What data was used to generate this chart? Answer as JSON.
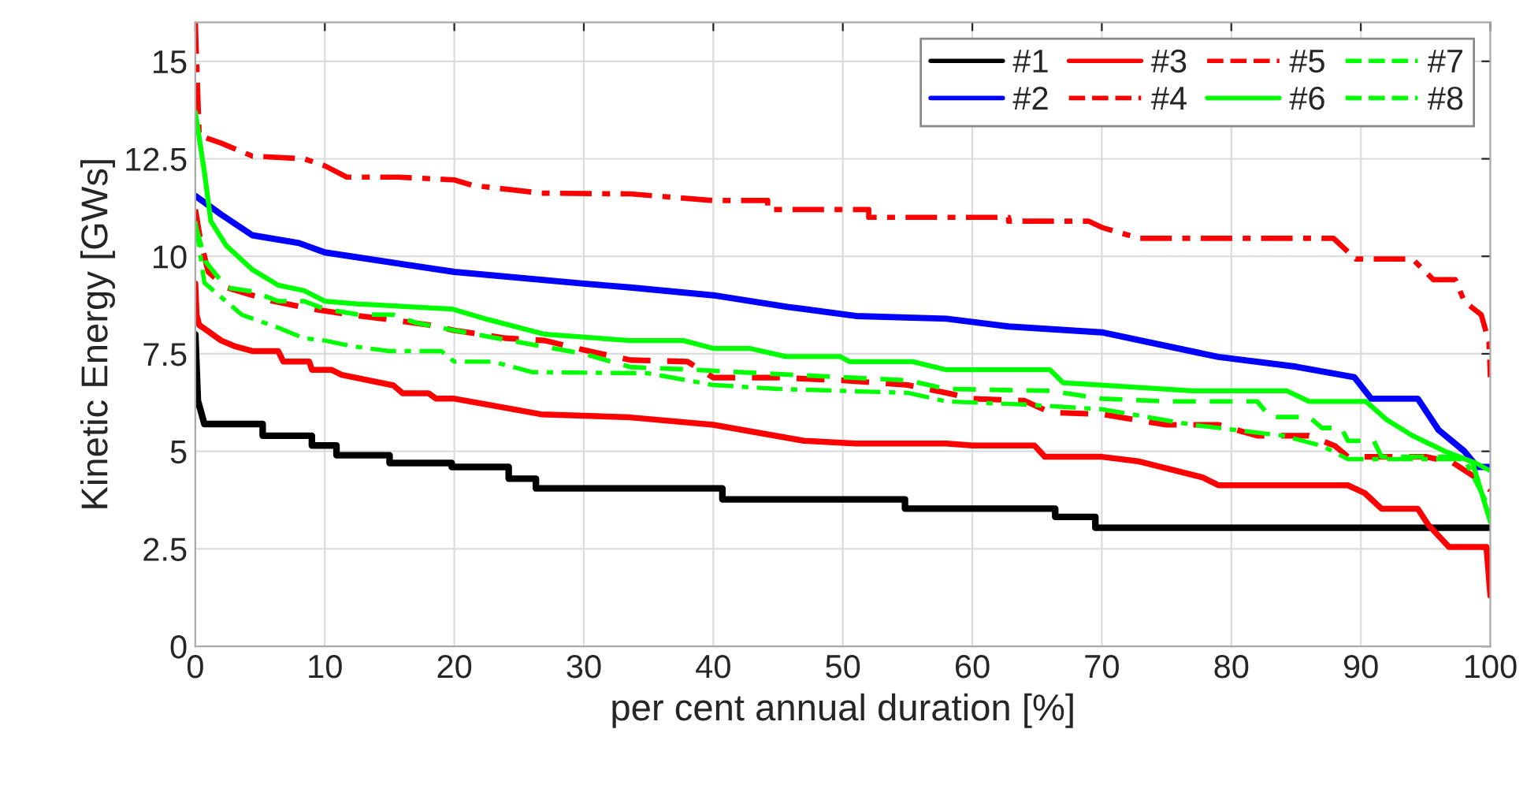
{
  "chart_data": {
    "type": "line",
    "xlabel": "per cent annual duration [%]",
    "ylabel": "Kinetic Energy [GWs]",
    "xlim": [
      0,
      100
    ],
    "xticks": [
      0,
      10,
      20,
      30,
      40,
      50,
      60,
      70,
      80,
      90,
      100
    ],
    "ylim": [
      0,
      16
    ],
    "yticks": [
      0,
      2.5,
      5,
      7.5,
      10,
      12.5,
      15
    ],
    "grid": true,
    "legend": "top right",
    "series": [
      {
        "name": "#1",
        "color": "#000000",
        "line_style": "solid",
        "x": [
          0,
          0.2,
          0.7,
          5.2,
          5.2,
          9,
          9,
          10.9,
          10.9,
          15,
          15,
          19.8,
          19.8,
          24.2,
          24.2,
          26.3,
          26.3,
          40.7,
          40.7,
          54.8,
          54.8,
          66.4,
          66.4,
          69.5,
          69.5,
          100
        ],
        "values": [
          8.0,
          6.3,
          5.7,
          5.7,
          5.4,
          5.4,
          5.15,
          5.15,
          4.9,
          4.9,
          4.7,
          4.7,
          4.6,
          4.6,
          4.3,
          4.3,
          4.05,
          4.05,
          3.77,
          3.77,
          3.53,
          3.53,
          3.32,
          3.32,
          3.04,
          3.04
        ]
      },
      {
        "name": "#2",
        "color": "#0000ff",
        "line_style": "solid",
        "x": [
          0,
          2,
          4.4,
          8,
          10,
          20,
          30,
          33.6,
          40,
          45.8,
          51,
          58,
          62.8,
          70,
          79,
          85,
          89.5,
          90.8,
          94.4,
          96,
          98,
          99,
          100
        ],
        "values": [
          11.55,
          11.07,
          10.54,
          10.34,
          10.1,
          9.6,
          9.3,
          9.2,
          9.0,
          8.7,
          8.47,
          8.4,
          8.2,
          8.05,
          7.42,
          7.17,
          6.9,
          6.35,
          6.35,
          5.55,
          5.0,
          4.6,
          4.6
        ]
      },
      {
        "name": "#3",
        "color": "#ff0000",
        "line_style": "solid",
        "x": [
          0,
          0.1,
          0.3,
          2,
          3,
          4.4,
          6.4,
          6.8,
          8.8,
          9,
          10.5,
          11.3,
          15.3,
          16,
          18,
          18.6,
          20,
          26.7,
          33.6,
          40,
          47,
          51,
          58,
          60,
          64.8,
          65.6,
          70,
          72.9,
          77.8,
          79,
          89,
          90.3,
          91.6,
          94.4,
          95.2,
          96.8,
          99.7,
          100
        ],
        "values": [
          9.3,
          8.5,
          8.24,
          7.84,
          7.7,
          7.57,
          7.57,
          7.3,
          7.3,
          7.09,
          7.09,
          6.96,
          6.69,
          6.49,
          6.49,
          6.35,
          6.35,
          5.95,
          5.87,
          5.68,
          5.27,
          5.2,
          5.2,
          5.15,
          5.15,
          4.86,
          4.86,
          4.74,
          4.33,
          4.13,
          4.13,
          3.93,
          3.53,
          3.53,
          3.12,
          2.55,
          2.55,
          1.3
        ]
      },
      {
        "name": "#4",
        "color": "#ff0000",
        "line_style": "dashed",
        "x": [
          0,
          0.4,
          1,
          2.4,
          4.4,
          6,
          9,
          12,
          15,
          18,
          20,
          24,
          27,
          30,
          33.6,
          38,
          40,
          45,
          50,
          55,
          58,
          60,
          64,
          66,
          70,
          75,
          79,
          82,
          86,
          88,
          89,
          95,
          97,
          99.5,
          100
        ],
        "values": [
          11.2,
          10.4,
          9.6,
          9.2,
          9.0,
          8.85,
          8.65,
          8.5,
          8.38,
          8.24,
          8.1,
          7.9,
          7.84,
          7.6,
          7.34,
          7.3,
          6.89,
          6.89,
          6.82,
          6.7,
          6.5,
          6.35,
          6.3,
          6.0,
          5.95,
          5.68,
          5.68,
          5.4,
          5.4,
          5.14,
          4.86,
          4.86,
          4.73,
          4.19,
          4.0
        ]
      },
      {
        "name": "#5",
        "color": "#ff0000",
        "line_style": "dashdot",
        "x": [
          0,
          0.3,
          2,
          4.4,
          8.4,
          10,
          11.7,
          15.7,
          20,
          21.4,
          26.7,
          33.6,
          40,
          44.2,
          44.2,
          52,
          52,
          62.8,
          62.8,
          69,
          70,
          72.9,
          87.9,
          89.6,
          94,
          95.6,
          97.3,
          98,
          99.3,
          99.9,
          100
        ],
        "values": [
          16,
          13.1,
          12.9,
          12.57,
          12.5,
          12.32,
          12.03,
          12.03,
          11.96,
          11.82,
          11.62,
          11.6,
          11.43,
          11.43,
          11.2,
          11.2,
          11.0,
          11.0,
          10.9,
          10.9,
          10.74,
          10.46,
          10.46,
          9.93,
          9.93,
          9.4,
          9.4,
          8.84,
          8.5,
          7.8,
          6.9
        ]
      },
      {
        "name": "#6",
        "color": "#00ff00",
        "line_style": "solid",
        "x": [
          0,
          0.7,
          1.2,
          2.4,
          4.4,
          6.4,
          8.4,
          10,
          12.5,
          19.8,
          22.6,
          27,
          33.6,
          37.7,
          40,
          42.8,
          45.6,
          49.8,
          50.5,
          55.4,
          58,
          66,
          67,
          77,
          84.3,
          86,
          90.4,
          92,
          94,
          96.5,
          98.6,
          100
        ],
        "values": [
          13.7,
          12.16,
          10.9,
          10.27,
          9.66,
          9.26,
          9.12,
          8.85,
          8.78,
          8.65,
          8.38,
          8.0,
          7.84,
          7.84,
          7.64,
          7.64,
          7.43,
          7.43,
          7.3,
          7.3,
          7.09,
          7.09,
          6.76,
          6.55,
          6.55,
          6.28,
          6.28,
          5.81,
          5.4,
          5.0,
          4.73,
          3.2
        ]
      },
      {
        "name": "#7",
        "color": "#00ff00",
        "line_style": "dashed",
        "x": [
          0,
          0.8,
          2.4,
          4.4,
          6.4,
          8.4,
          10,
          12.5,
          15.3,
          17,
          20,
          25,
          30,
          33.6,
          38,
          42,
          50,
          55,
          58,
          66,
          70,
          75,
          82,
          83,
          86,
          87,
          88.5,
          89,
          91,
          91.6,
          98,
          100
        ],
        "values": [
          10.8,
          9.86,
          9.2,
          9.1,
          8.85,
          8.85,
          8.65,
          8.51,
          8.5,
          8.3,
          8.1,
          7.8,
          7.5,
          7.16,
          7.1,
          7.03,
          6.9,
          6.82,
          6.6,
          6.55,
          6.35,
          6.28,
          6.28,
          5.88,
          5.88,
          5.6,
          5.6,
          5.27,
          5.27,
          4.86,
          4.86,
          4.5
        ]
      },
      {
        "name": "#8",
        "color": "#00ff00",
        "line_style": "dashdot",
        "x": [
          0,
          0.7,
          3.6,
          6.4,
          8.4,
          10,
          12,
          15,
          19,
          20,
          23,
          26,
          35,
          40,
          45,
          50,
          55,
          58,
          64,
          70,
          77,
          84,
          87,
          89,
          98,
          100
        ],
        "values": [
          10.9,
          9.32,
          8.5,
          8.17,
          7.9,
          7.84,
          7.7,
          7.57,
          7.57,
          7.3,
          7.3,
          7.03,
          7.0,
          6.7,
          6.6,
          6.55,
          6.5,
          6.28,
          6.2,
          6.08,
          5.68,
          5.4,
          5.14,
          4.8,
          4.8,
          3.5
        ]
      }
    ]
  }
}
